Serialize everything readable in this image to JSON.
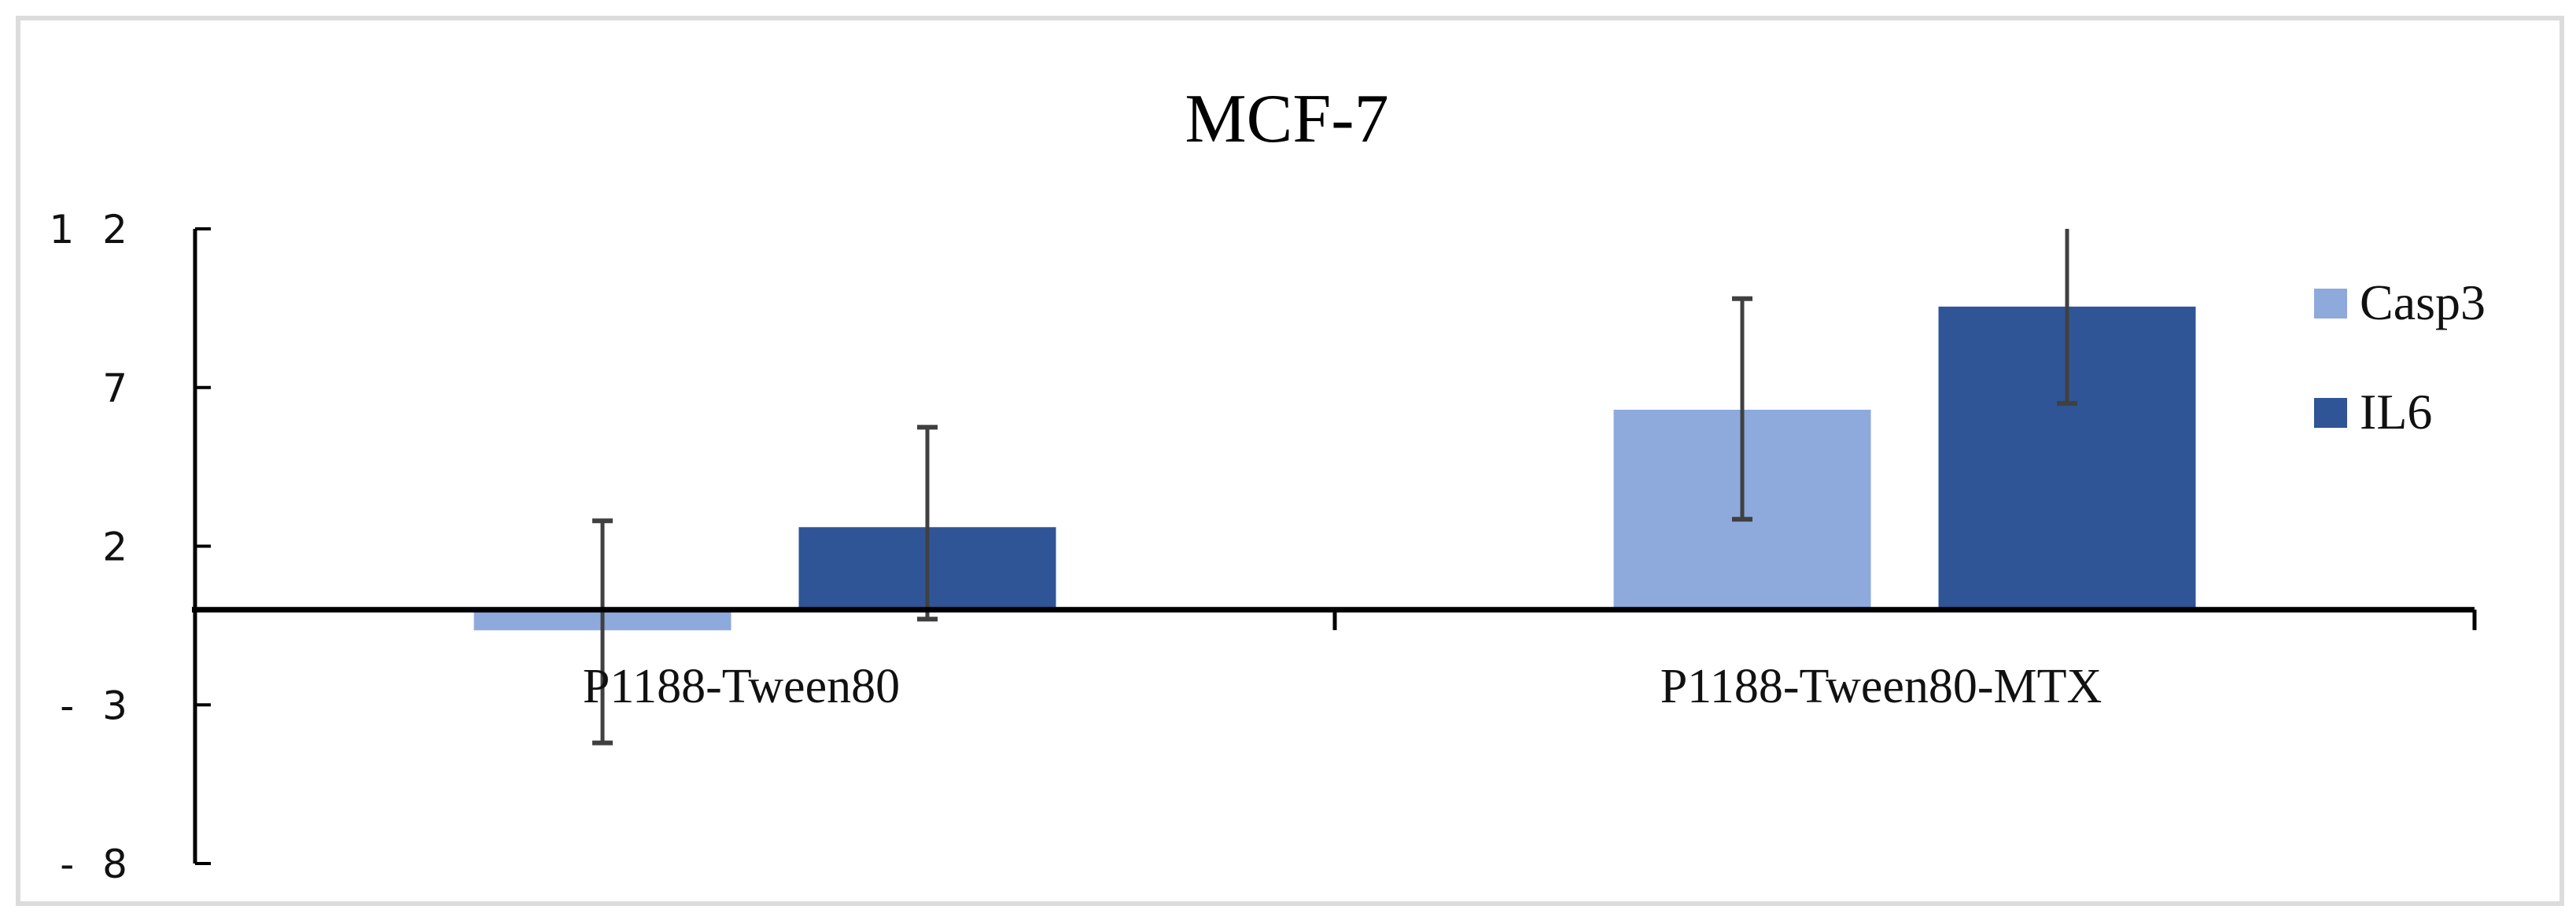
{
  "chart_data": {
    "type": "bar",
    "title": "MCF-7",
    "xlabel": "",
    "ylabel": "",
    "categories": [
      "P1188-Tween80",
      "P1188-Tween80-MTX"
    ],
    "series": [
      {
        "name": "Casp3",
        "color": "#8EA9DB",
        "values": [
          -0.65,
          6.3
        ],
        "error_upper": [
          2.8,
          9.8
        ],
        "error_lower": [
          -4.2,
          2.85
        ]
      },
      {
        "name": "IL6",
        "color": "#2F5597",
        "values": [
          2.6,
          9.55
        ],
        "error_upper": [
          5.75,
          12.0
        ],
        "error_lower": [
          -0.3,
          6.5
        ]
      }
    ],
    "ylim": [
      -8,
      12
    ],
    "yticks": [
      12,
      7,
      2,
      -3,
      -8
    ],
    "ytick_labels": [
      "1 2",
      "7",
      "2",
      "- 3",
      "- 8"
    ],
    "grid": false,
    "legend_position": "right",
    "error_bar_color": "#404040",
    "axis_color": "#000000"
  }
}
